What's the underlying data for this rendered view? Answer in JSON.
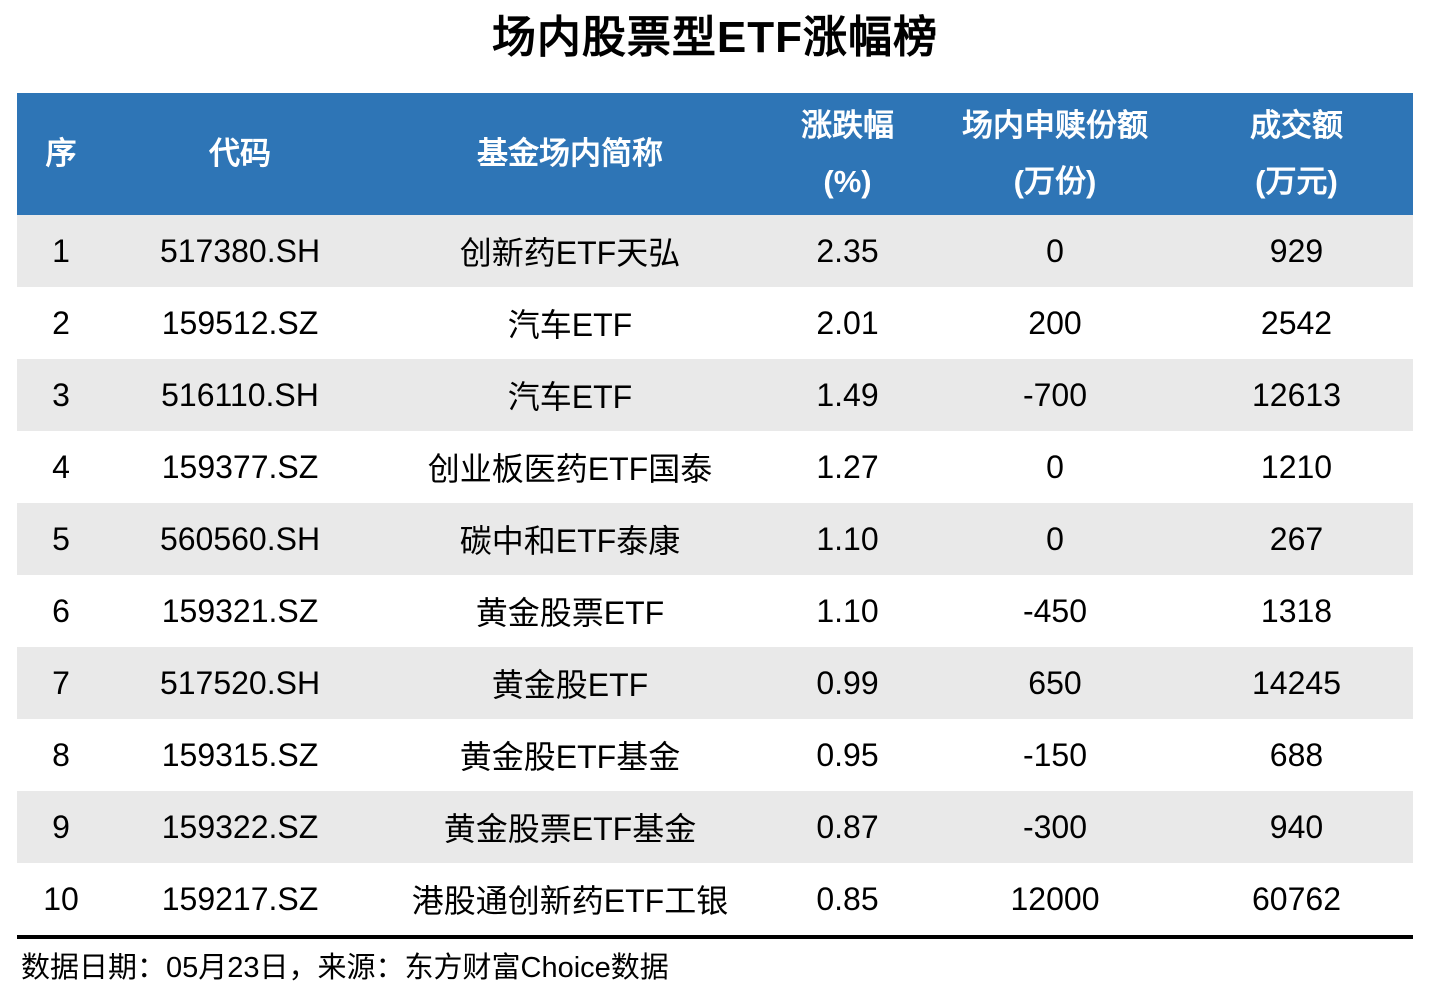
{
  "title": "场内股票型ETF涨幅榜",
  "colors": {
    "header_bg": "#2E75B6",
    "header_text": "#FFFFFF",
    "row_alt_bg": "#E9E9E9",
    "row_bg": "#FFFFFF",
    "text": "#000000",
    "divider": "#000000"
  },
  "footer": {
    "text": "数据日期：05月23日，来源：东方财富Choice数据"
  },
  "chart_data": {
    "type": "table",
    "title": "场内股票型ETF涨幅榜",
    "columns": [
      {
        "id": "rank",
        "label": "序",
        "sub": ""
      },
      {
        "id": "code",
        "label": "代码",
        "sub": ""
      },
      {
        "id": "name",
        "label": "基金场内简称",
        "sub": ""
      },
      {
        "id": "change",
        "label": "涨跌幅",
        "sub": "(%)"
      },
      {
        "id": "shares",
        "label": "场内申赎份额",
        "sub": "(万份)"
      },
      {
        "id": "turnover",
        "label": "成交额",
        "sub": "(万元)"
      }
    ],
    "rows": [
      [
        "1",
        "517380.SH",
        "创新药ETF天弘",
        "2.35",
        "0",
        "929"
      ],
      [
        "2",
        "159512.SZ",
        "汽车ETF",
        "2.01",
        "200",
        "2542"
      ],
      [
        "3",
        "516110.SH",
        "汽车ETF",
        "1.49",
        "-700",
        "12613"
      ],
      [
        "4",
        "159377.SZ",
        "创业板医药ETF国泰",
        "1.27",
        "0",
        "1210"
      ],
      [
        "5",
        "560560.SH",
        "碳中和ETF泰康",
        "1.10",
        "0",
        "267"
      ],
      [
        "6",
        "159321.SZ",
        "黄金股票ETF",
        "1.10",
        "-450",
        "1318"
      ],
      [
        "7",
        "517520.SH",
        "黄金股ETF",
        "0.99",
        "650",
        "14245"
      ],
      [
        "8",
        "159315.SZ",
        "黄金股ETF基金",
        "0.95",
        "-150",
        "688"
      ],
      [
        "9",
        "159322.SZ",
        "黄金股票ETF基金",
        "0.87",
        "-300",
        "940"
      ],
      [
        "10",
        "159217.SZ",
        "港股通创新药ETF工银",
        "0.85",
        "12000",
        "60762"
      ]
    ],
    "source_note": "数据日期：05月23日，来源：东方财富Choice数据",
    "layout": {
      "legend": "none",
      "grid": "off",
      "row_striping": "odd-gray"
    }
  }
}
